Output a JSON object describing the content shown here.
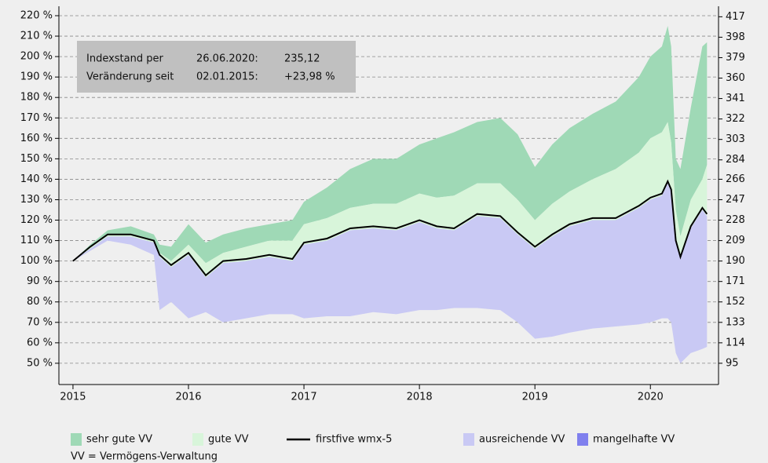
{
  "chart_data": {
    "type": "band",
    "annotation": {
      "rows": [
        [
          "Indexstand per",
          "26.06.2020:",
          "235,12"
        ],
        [
          "Veränderung seit",
          "02.01.2015:",
          "+23,98 %"
        ]
      ]
    },
    "footnote": "VV = Vermögens-Verwaltung",
    "x": [
      2015.0,
      2015.15,
      2015.3,
      2015.5,
      2015.7,
      2015.75,
      2015.85,
      2016.0,
      2016.15,
      2016.3,
      2016.5,
      2016.7,
      2016.9,
      2017.0,
      2017.2,
      2017.4,
      2017.6,
      2017.8,
      2018.0,
      2018.15,
      2018.3,
      2018.5,
      2018.7,
      2018.85,
      2019.0,
      2019.15,
      2019.3,
      2019.5,
      2019.7,
      2019.9,
      2020.0,
      2020.1,
      2020.15,
      2020.18,
      2020.22,
      2020.26,
      2020.35,
      2020.45,
      2020.49
    ],
    "series": [
      {
        "name": "sehr gute VV",
        "color": "#9fd9b6",
        "kind": "band",
        "values": [
          100,
          108,
          115,
          117,
          113,
          108,
          107,
          118,
          109,
          113,
          116,
          118,
          120,
          129,
          136,
          145,
          150,
          150,
          157,
          160,
          163,
          168,
          170,
          162,
          146,
          157,
          165,
          172,
          178,
          190,
          200,
          205,
          215,
          205,
          150,
          145,
          175,
          205,
          207
        ],
        "lower": [
          100,
          107,
          113,
          113,
          110,
          104,
          100,
          108,
          99,
          104,
          107,
          110,
          110,
          118,
          121,
          126,
          128,
          128,
          133,
          131,
          132,
          138,
          138,
          130,
          120,
          128,
          134,
          140,
          145,
          153,
          160,
          163,
          168,
          158,
          125,
          112,
          130,
          140,
          147
        ]
      },
      {
        "name": "gute VV",
        "color": "#d8f5da",
        "kind": "band",
        "values": [
          100,
          107,
          113,
          113,
          110,
          104,
          100,
          108,
          99,
          104,
          107,
          110,
          110,
          118,
          121,
          126,
          128,
          128,
          133,
          131,
          132,
          138,
          138,
          130,
          120,
          128,
          134,
          140,
          145,
          153,
          160,
          163,
          168,
          158,
          125,
          112,
          130,
          140,
          147
        ],
        "lower": [
          100,
          106,
          112,
          112,
          109,
          102,
          97,
          103,
          92,
          99,
          100,
          102,
          100,
          108,
          110,
          115,
          116,
          115,
          119,
          116,
          115,
          122,
          121,
          113,
          106,
          112,
          117,
          120,
          120,
          126,
          130,
          132,
          138,
          134,
          109,
          101,
          116,
          125,
          122
        ]
      },
      {
        "name": "firstfive wmx-5",
        "color": "#000000",
        "kind": "line",
        "values": [
          100,
          107,
          113,
          113,
          110,
          103,
          98,
          104,
          93,
          100,
          101,
          103,
          101,
          109,
          111,
          116,
          117,
          116,
          120,
          117,
          116,
          123,
          122,
          114,
          107,
          113,
          118,
          121,
          121,
          127,
          131,
          133,
          139,
          135,
          110,
          102,
          117,
          126,
          123
        ]
      },
      {
        "name": "ausreichende VV",
        "color": "#c9c9f4",
        "kind": "band",
        "values": [
          100,
          106,
          112,
          112,
          109,
          102,
          97,
          103,
          92,
          99,
          100,
          102,
          100,
          108,
          110,
          115,
          116,
          115,
          119,
          116,
          115,
          122,
          121,
          113,
          106,
          112,
          117,
          120,
          120,
          126,
          130,
          132,
          138,
          134,
          109,
          101,
          116,
          125,
          122
        ],
        "lower": [
          100,
          105,
          110,
          108,
          103,
          76,
          80,
          72,
          75,
          70,
          72,
          74,
          74,
          72,
          73,
          73,
          75,
          74,
          76,
          76,
          77,
          77,
          76,
          70,
          62,
          63,
          65,
          67,
          68,
          69,
          70,
          72,
          72,
          70,
          55,
          50,
          55,
          57,
          58
        ]
      },
      {
        "name": "mangelhafte VV",
        "color": "#8080ee",
        "kind": "legend"
      }
    ],
    "xlim": [
      2014.878,
      2020.59
    ],
    "xticks": [
      2015,
      2016,
      2017,
      2018,
      2019,
      2020
    ],
    "ylim": [
      39.6,
      224.6
    ],
    "yticks": [
      {
        "value": 50,
        "label": "50 %"
      },
      {
        "value": 60,
        "label": "60 %"
      },
      {
        "value": 70,
        "label": "70 %"
      },
      {
        "value": 80,
        "label": "80 %"
      },
      {
        "value": 90,
        "label": "90 %"
      },
      {
        "value": 100,
        "label": "100 %"
      },
      {
        "value": 110,
        "label": "110 %"
      },
      {
        "value": 120,
        "label": "120 %"
      },
      {
        "value": 130,
        "label": "130 %"
      },
      {
        "value": 140,
        "label": "140 %"
      },
      {
        "value": 150,
        "label": "150 %"
      },
      {
        "value": 160,
        "label": "160 %"
      },
      {
        "value": 170,
        "label": "170 %"
      },
      {
        "value": 180,
        "label": "180 %"
      },
      {
        "value": 190,
        "label": "190 %"
      },
      {
        "value": 200,
        "label": "200 %"
      },
      {
        "value": 210,
        "label": "210 %"
      },
      {
        "value": 220,
        "label": "220 %"
      }
    ],
    "y2lim": [
      75.24,
      426.74
    ],
    "y2ticks": [
      95,
      114,
      133,
      152,
      171,
      190,
      209,
      228,
      247,
      266,
      284,
      303,
      322,
      341,
      360,
      379,
      398,
      417
    ],
    "grid": true
  }
}
